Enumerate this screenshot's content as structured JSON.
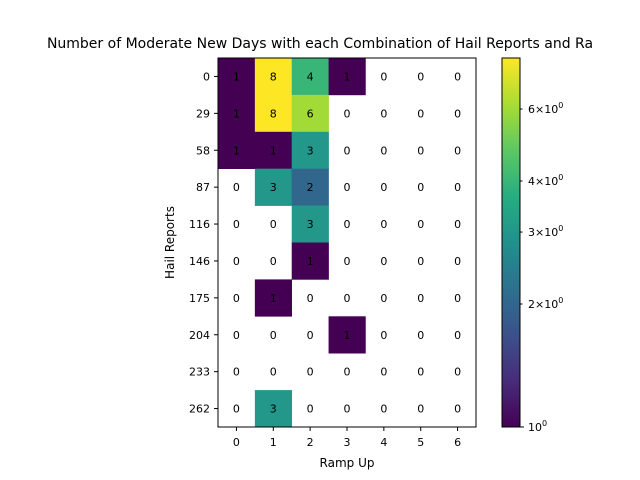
{
  "chart_data": {
    "type": "heatmap",
    "title": "Number of Moderate New Days with each Combination of Hail Reports and Ra",
    "xlabel": "Ramp Up",
    "ylabel": "Hail Reports",
    "x_categories": [
      "0",
      "1",
      "2",
      "3",
      "4",
      "5",
      "6"
    ],
    "y_categories": [
      "0",
      "29",
      "58",
      "87",
      "116",
      "146",
      "175",
      "204",
      "233",
      "262"
    ],
    "values": [
      [
        1,
        8,
        4,
        1,
        0,
        0,
        0
      ],
      [
        1,
        8,
        6,
        0,
        0,
        0,
        0
      ],
      [
        1,
        1,
        3,
        0,
        0,
        0,
        0
      ],
      [
        0,
        3,
        2,
        0,
        0,
        0,
        0
      ],
      [
        0,
        0,
        3,
        0,
        0,
        0,
        0
      ],
      [
        0,
        0,
        1,
        0,
        0,
        0,
        0
      ],
      [
        0,
        1,
        0,
        0,
        0,
        0,
        0
      ],
      [
        0,
        0,
        0,
        1,
        0,
        0,
        0
      ],
      [
        0,
        0,
        0,
        0,
        0,
        0,
        0
      ],
      [
        0,
        3,
        0,
        0,
        0,
        0,
        0
      ]
    ],
    "colormap": "viridis",
    "color_scale": "log",
    "color_range": [
      1,
      8
    ],
    "zero_cells": "blank",
    "colorbar": {
      "major_ticks": [
        {
          "value": 1,
          "label": "10"
        }
      ],
      "minor_ticks": [
        {
          "value": 2,
          "label": "2×10"
        },
        {
          "value": 3,
          "label": "3×10"
        },
        {
          "value": 4,
          "label": "4×10"
        },
        {
          "value": 6,
          "label": "6×10"
        }
      ],
      "tick_exponent": "0"
    }
  }
}
